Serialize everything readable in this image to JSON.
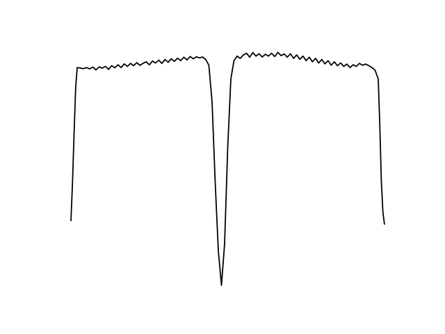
{
  "chart_data": {
    "type": "line",
    "axes_visible": false,
    "grid": false,
    "legend": "none",
    "xlim": [
      0,
      100
    ],
    "ylim": [
      0,
      1.02
    ],
    "series": [
      {
        "color": "#000000",
        "points": [
          [
            0,
            0.28
          ],
          [
            0.5,
            0.45
          ],
          [
            1,
            0.66
          ],
          [
            1.5,
            0.86
          ],
          [
            2,
            0.95
          ],
          [
            3,
            0.948
          ],
          [
            4,
            0.945
          ],
          [
            5,
            0.95
          ],
          [
            6,
            0.944
          ],
          [
            7,
            0.952
          ],
          [
            8,
            0.94
          ],
          [
            9,
            0.953
          ],
          [
            10,
            0.947
          ],
          [
            11,
            0.955
          ],
          [
            12,
            0.942
          ],
          [
            13,
            0.958
          ],
          [
            14,
            0.949
          ],
          [
            15,
            0.962
          ],
          [
            16,
            0.95
          ],
          [
            17,
            0.966
          ],
          [
            18,
            0.955
          ],
          [
            19,
            0.968
          ],
          [
            20,
            0.958
          ],
          [
            21,
            0.971
          ],
          [
            22,
            0.96
          ],
          [
            23,
            0.968
          ],
          [
            24,
            0.975
          ],
          [
            25,
            0.962
          ],
          [
            26,
            0.978
          ],
          [
            27,
            0.97
          ],
          [
            28,
            0.982
          ],
          [
            29,
            0.968
          ],
          [
            30,
            0.985
          ],
          [
            31,
            0.973
          ],
          [
            32,
            0.988
          ],
          [
            33,
            0.977
          ],
          [
            34,
            0.991
          ],
          [
            35,
            0.98
          ],
          [
            36,
            0.995
          ],
          [
            37,
            0.983
          ],
          [
            38,
            0.998
          ],
          [
            39,
            0.988
          ],
          [
            40,
            0.997
          ],
          [
            41,
            0.992
          ],
          [
            42,
            0.996
          ],
          [
            43,
            0.985
          ],
          [
            44,
            0.96
          ],
          [
            45,
            0.8
          ],
          [
            46,
            0.45
          ],
          [
            47,
            0.15
          ],
          [
            48,
            0.0
          ],
          [
            49,
            0.18
          ],
          [
            50,
            0.6
          ],
          [
            51,
            0.9
          ],
          [
            52,
            0.98
          ],
          [
            53,
            1.0
          ],
          [
            54,
            0.99
          ],
          [
            55,
            1.005
          ],
          [
            56,
            1.012
          ],
          [
            57,
            0.995
          ],
          [
            58,
            1.015
          ],
          [
            59,
            1.0
          ],
          [
            60,
            1.01
          ],
          [
            61,
            0.996
          ],
          [
            62,
            1.008
          ],
          [
            63,
            1.0
          ],
          [
            64,
            1.012
          ],
          [
            65,
            0.998
          ],
          [
            66,
            1.016
          ],
          [
            67,
            1.002
          ],
          [
            68,
            1.009
          ],
          [
            69,
            0.995
          ],
          [
            70,
            1.01
          ],
          [
            71,
            0.99
          ],
          [
            72,
            1.005
          ],
          [
            73,
            0.986
          ],
          [
            74,
            1.0
          ],
          [
            75,
            0.98
          ],
          [
            76,
            0.995
          ],
          [
            77,
            0.975
          ],
          [
            78,
            0.99
          ],
          [
            79,
            0.97
          ],
          [
            80,
            0.985
          ],
          [
            81,
            0.966
          ],
          [
            82,
            0.98
          ],
          [
            83,
            0.96
          ],
          [
            84,
            0.975
          ],
          [
            85,
            0.958
          ],
          [
            86,
            0.97
          ],
          [
            87,
            0.955
          ],
          [
            88,
            0.965
          ],
          [
            89,
            0.95
          ],
          [
            90,
            0.962
          ],
          [
            91,
            0.955
          ],
          [
            92,
            0.968
          ],
          [
            93,
            0.96
          ],
          [
            94,
            0.965
          ],
          [
            95,
            0.958
          ],
          [
            96,
            0.95
          ],
          [
            97,
            0.938
          ],
          [
            98,
            0.9
          ],
          [
            98.5,
            0.7
          ],
          [
            99,
            0.45
          ],
          [
            99.5,
            0.32
          ],
          [
            100,
            0.265
          ]
        ]
      }
    ]
  }
}
